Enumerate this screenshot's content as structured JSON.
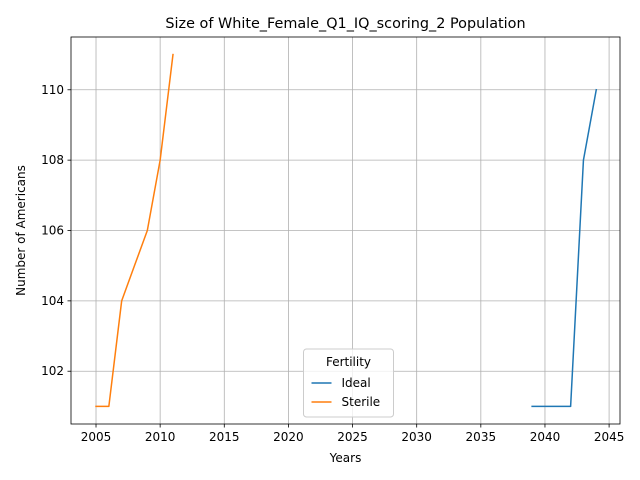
{
  "chart_data": {
    "type": "line",
    "title": "Size of White_Female_Q1_IQ_scoring_2 Population",
    "xlabel": "Years",
    "ylabel": "Number of Americans",
    "xlim": [
      2003.05,
      2045.85
    ],
    "ylim": [
      100.5,
      111.5
    ],
    "xticks": [
      2005,
      2010,
      2015,
      2020,
      2025,
      2030,
      2035,
      2040,
      2045
    ],
    "yticks": [
      102,
      104,
      106,
      108,
      110
    ],
    "grid": true,
    "legend": {
      "title": "Fertility",
      "placement": "lower-center"
    },
    "series": [
      {
        "name": "Ideal",
        "color": "#1f77b4",
        "x": [
          2039,
          2040,
          2041,
          2042,
          2043,
          2044
        ],
        "y": [
          101,
          101,
          101,
          101,
          108,
          110
        ]
      },
      {
        "name": "Sterile",
        "color": "#ff7f0e",
        "x": [
          2005,
          2006,
          2007,
          2008,
          2009,
          2010,
          2011
        ],
        "y": [
          101,
          101,
          104,
          105,
          106,
          108,
          111
        ]
      }
    ]
  }
}
